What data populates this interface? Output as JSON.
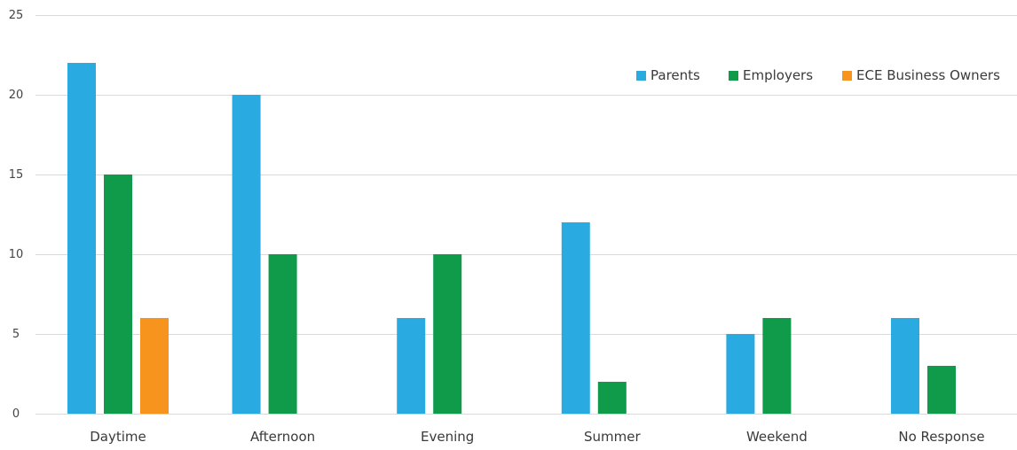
{
  "chart_data": {
    "type": "bar",
    "title": "",
    "xlabel": "",
    "ylabel": "",
    "ylim": [
      0,
      25
    ],
    "yticks": [
      0,
      5,
      10,
      15,
      20,
      25
    ],
    "grid": true,
    "legend_position": "top-right",
    "categories": [
      "Daytime",
      "Afternoon",
      "Evening",
      "Summer",
      "Weekend",
      "No Response"
    ],
    "series": [
      {
        "name": "Parents",
        "color": "#29abe2",
        "values": [
          22,
          20,
          6,
          12,
          5,
          6
        ]
      },
      {
        "name": "Employers",
        "color": "#0f9b4a",
        "values": [
          15,
          10,
          10,
          2,
          6,
          3
        ]
      },
      {
        "name": "ECE Business Owners",
        "color": "#f7941d",
        "values": [
          6,
          0,
          0,
          0,
          0,
          0
        ]
      }
    ]
  }
}
